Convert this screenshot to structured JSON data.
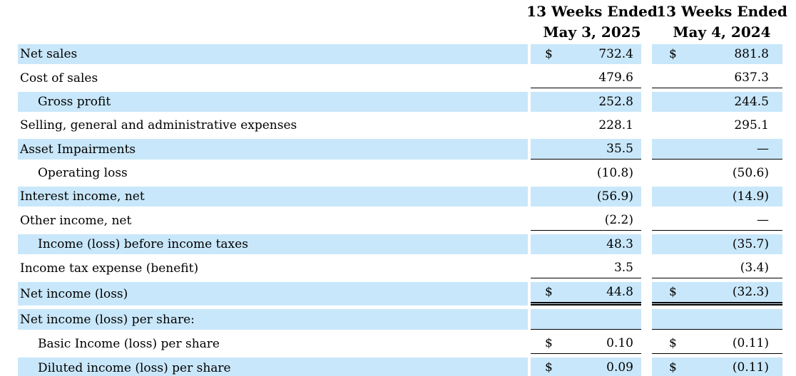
{
  "document": {
    "type": "condensed-statement-of-operations"
  },
  "colors": {
    "row_highlight": "#c9e7fa",
    "text": "#000000",
    "background": "#ffffff"
  },
  "header": {
    "col_2025": {
      "line1": "13 Weeks Ended",
      "line2": "May 3, 2025"
    },
    "col_2024": {
      "line1": "13 Weeks Ended",
      "line2": "May 4, 2024"
    }
  },
  "rows": [
    {
      "label": "Net sales",
      "indent": false,
      "dollar": "$",
      "v2025": "732.4",
      "v2024": "881.8",
      "shaded": true,
      "rule": "none"
    },
    {
      "label": "Cost of sales",
      "indent": false,
      "dollar": "",
      "v2025": "479.6",
      "v2024": "637.3",
      "shaded": false,
      "rule": "single"
    },
    {
      "label": "Gross profit",
      "indent": true,
      "dollar": "",
      "v2025": "252.8",
      "v2024": "244.5",
      "shaded": true,
      "rule": "none"
    },
    {
      "label": "Selling, general and administrative expenses",
      "indent": false,
      "dollar": "",
      "v2025": "228.1",
      "v2024": "295.1",
      "shaded": false,
      "rule": "none"
    },
    {
      "label": "Asset Impairments",
      "indent": false,
      "dollar": "",
      "v2025": "35.5",
      "v2024": "—",
      "shaded": true,
      "rule": "single"
    },
    {
      "label": "Operating loss",
      "indent": true,
      "dollar": "",
      "v2025": "(10.8)",
      "v2024": "(50.6)",
      "shaded": false,
      "rule": "none"
    },
    {
      "label": "Interest income, net",
      "indent": false,
      "dollar": "",
      "v2025": "(56.9)",
      "v2024": "(14.9)",
      "shaded": true,
      "rule": "none"
    },
    {
      "label": "Other income, net",
      "indent": false,
      "dollar": "",
      "v2025": "(2.2)",
      "v2024": "—",
      "shaded": false,
      "rule": "single"
    },
    {
      "label": "Income (loss) before income taxes",
      "indent": true,
      "dollar": "",
      "v2025": "48.3",
      "v2024": "(35.7)",
      "shaded": true,
      "rule": "none"
    },
    {
      "label": "Income tax expense (benefit)",
      "indent": false,
      "dollar": "",
      "v2025": "3.5",
      "v2024": "(3.4)",
      "shaded": false,
      "rule": "single"
    },
    {
      "label": "Net income (loss)",
      "indent": false,
      "dollar": "$",
      "v2025": "44.8",
      "v2024": "(32.3)",
      "shaded": true,
      "rule": "double"
    },
    {
      "label": "Net income (loss) per share:",
      "indent": false,
      "dollar": "",
      "v2025": "",
      "v2024": "",
      "shaded": true,
      "rule": "single"
    },
    {
      "label": "Basic Income (loss) per share",
      "indent": true,
      "dollar": "$",
      "v2025": "0.10",
      "v2024": "(0.11)",
      "shaded": false,
      "rule": "single"
    },
    {
      "label": "Diluted income (loss) per share",
      "indent": true,
      "dollar": "$",
      "v2025": "0.09",
      "v2024": "(0.11)",
      "shaded": true,
      "rule": "single"
    }
  ]
}
